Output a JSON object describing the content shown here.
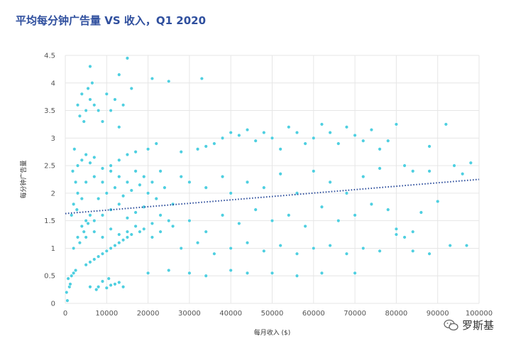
{
  "chart_data": {
    "type": "scatter",
    "title": "平均每分钟广告量 VS 收入，Q1 2020",
    "xlabel": "每月收入 ($)",
    "ylabel": "每分钟广告量",
    "xlim": [
      0,
      100000
    ],
    "ylim": [
      0,
      4.5
    ],
    "xticks": [
      "0",
      "10000",
      "20000",
      "30000",
      "40000",
      "50000",
      "60000",
      "70000",
      "80000",
      "90000",
      "100000"
    ],
    "yticks": [
      "0",
      "0.5",
      "1",
      "1.5",
      "2",
      "2.5",
      "3",
      "3.5",
      "4",
      "4.5"
    ],
    "grid": true,
    "point_color": "#4ecfe0",
    "trendline": {
      "x": [
        0,
        100000
      ],
      "y": [
        1.63,
        2.25
      ],
      "color": "#2b4c9b"
    },
    "series": [
      {
        "values": [
          [
            8000,
            0.3
          ],
          [
            10000,
            0.28
          ],
          [
            12000,
            0.35
          ],
          [
            9000,
            0.4
          ],
          [
            11000,
            0.33
          ],
          [
            6000,
            0.3
          ],
          [
            14000,
            0.3
          ],
          [
            13000,
            0.38
          ],
          [
            7500,
            0.25
          ],
          [
            10500,
            0.45
          ],
          [
            5000,
            0.7
          ],
          [
            7000,
            0.8
          ],
          [
            9000,
            0.9
          ],
          [
            11000,
            1.0
          ],
          [
            13000,
            1.1
          ],
          [
            15000,
            1.2
          ],
          [
            6000,
            0.75
          ],
          [
            8000,
            0.85
          ],
          [
            10000,
            0.95
          ],
          [
            12000,
            1.05
          ],
          [
            14000,
            1.15
          ],
          [
            16000,
            1.25
          ],
          [
            18000,
            1.3
          ],
          [
            2000,
            1.0
          ],
          [
            3000,
            1.2
          ],
          [
            4000,
            1.4
          ],
          [
            5000,
            1.5
          ],
          [
            6000,
            1.6
          ],
          [
            3500,
            1.1
          ],
          [
            4500,
            1.3
          ],
          [
            5500,
            1.45
          ],
          [
            7000,
            1.5
          ],
          [
            9000,
            1.6
          ],
          [
            11000,
            1.7
          ],
          [
            13000,
            1.8
          ],
          [
            15000,
            1.55
          ],
          [
            17000,
            1.65
          ],
          [
            19000,
            1.75
          ],
          [
            21000,
            1.45
          ],
          [
            23000,
            1.6
          ],
          [
            25000,
            1.5
          ],
          [
            8000,
            1.9
          ],
          [
            10000,
            2.0
          ],
          [
            12000,
            2.1
          ],
          [
            14000,
            1.95
          ],
          [
            16000,
            2.05
          ],
          [
            18000,
            2.15
          ],
          [
            20000,
            2.0
          ],
          [
            22000,
            1.9
          ],
          [
            24000,
            2.1
          ],
          [
            26000,
            1.8
          ],
          [
            3000,
            2.5
          ],
          [
            4000,
            2.6
          ],
          [
            5000,
            2.7
          ],
          [
            6000,
            2.55
          ],
          [
            7000,
            2.65
          ],
          [
            9000,
            2.45
          ],
          [
            11000,
            2.5
          ],
          [
            13000,
            2.6
          ],
          [
            15000,
            2.7
          ],
          [
            17000,
            2.75
          ],
          [
            3000,
            3.6
          ],
          [
            4000,
            3.8
          ],
          [
            5000,
            3.5
          ],
          [
            6000,
            3.7
          ],
          [
            4500,
            3.3
          ],
          [
            5500,
            3.9
          ],
          [
            3500,
            3.4
          ],
          [
            6500,
            4.0
          ],
          [
            7000,
            3.6
          ],
          [
            8000,
            3.5
          ],
          [
            10000,
            3.8
          ],
          [
            12000,
            3.7
          ],
          [
            14000,
            3.6
          ],
          [
            16000,
            3.9
          ],
          [
            9000,
            3.3
          ],
          [
            11000,
            3.5
          ],
          [
            13000,
            3.2
          ],
          [
            15000,
            4.45
          ],
          [
            13000,
            4.15
          ],
          [
            6000,
            4.3
          ],
          [
            33000,
            4.08
          ],
          [
            25000,
            4.03
          ],
          [
            21000,
            4.08
          ],
          [
            20000,
            2.8
          ],
          [
            22000,
            2.9
          ],
          [
            28000,
            2.75
          ],
          [
            32000,
            2.8
          ],
          [
            34000,
            2.85
          ],
          [
            36000,
            2.9
          ],
          [
            38000,
            3.0
          ],
          [
            40000,
            3.1
          ],
          [
            42000,
            3.05
          ],
          [
            44000,
            3.15
          ],
          [
            46000,
            2.95
          ],
          [
            48000,
            3.1
          ],
          [
            50000,
            3.0
          ],
          [
            52000,
            2.8
          ],
          [
            54000,
            3.2
          ],
          [
            56000,
            3.1
          ],
          [
            58000,
            2.9
          ],
          [
            60000,
            3.0
          ],
          [
            62000,
            3.25
          ],
          [
            64000,
            3.1
          ],
          [
            66000,
            2.9
          ],
          [
            68000,
            3.2
          ],
          [
            70000,
            3.05
          ],
          [
            72000,
            2.95
          ],
          [
            74000,
            3.15
          ],
          [
            76000,
            2.8
          ],
          [
            78000,
            2.95
          ],
          [
            80000,
            3.25
          ],
          [
            88000,
            2.85
          ],
          [
            92000,
            3.25
          ],
          [
            28000,
            2.3
          ],
          [
            30000,
            2.2
          ],
          [
            34000,
            2.1
          ],
          [
            38000,
            2.3
          ],
          [
            40000,
            2.0
          ],
          [
            44000,
            2.2
          ],
          [
            48000,
            2.1
          ],
          [
            52000,
            2.35
          ],
          [
            56000,
            2.0
          ],
          [
            60000,
            2.4
          ],
          [
            64000,
            2.2
          ],
          [
            68000,
            2.0
          ],
          [
            72000,
            2.3
          ],
          [
            76000,
            2.45
          ],
          [
            82000,
            2.5
          ],
          [
            84000,
            2.4
          ],
          [
            88000,
            2.4
          ],
          [
            96000,
            2.35
          ],
          [
            98000,
            2.55
          ],
          [
            94000,
            2.5
          ],
          [
            26000,
            1.4
          ],
          [
            30000,
            1.5
          ],
          [
            34000,
            1.3
          ],
          [
            38000,
            1.6
          ],
          [
            42000,
            1.45
          ],
          [
            46000,
            1.7
          ],
          [
            50000,
            1.5
          ],
          [
            54000,
            1.6
          ],
          [
            58000,
            1.4
          ],
          [
            62000,
            1.75
          ],
          [
            66000,
            1.5
          ],
          [
            70000,
            1.6
          ],
          [
            74000,
            1.8
          ],
          [
            78000,
            1.7
          ],
          [
            80000,
            1.35
          ],
          [
            84000,
            1.3
          ],
          [
            86000,
            1.65
          ],
          [
            90000,
            1.85
          ],
          [
            28000,
            1.0
          ],
          [
            32000,
            1.1
          ],
          [
            36000,
            0.9
          ],
          [
            40000,
            1.0
          ],
          [
            44000,
            1.1
          ],
          [
            48000,
            0.95
          ],
          [
            52000,
            1.05
          ],
          [
            56000,
            0.9
          ],
          [
            60000,
            1.0
          ],
          [
            64000,
            1.05
          ],
          [
            68000,
            0.9
          ],
          [
            72000,
            1.0
          ],
          [
            76000,
            0.95
          ],
          [
            80000,
            1.25
          ],
          [
            82000,
            1.2
          ],
          [
            84000,
            0.95
          ],
          [
            88000,
            0.9
          ],
          [
            93000,
            1.05
          ],
          [
            97000,
            1.05
          ],
          [
            20000,
            0.55
          ],
          [
            25000,
            0.6
          ],
          [
            30000,
            0.55
          ],
          [
            34000,
            0.5
          ],
          [
            40000,
            0.6
          ],
          [
            44000,
            0.55
          ],
          [
            50000,
            0.55
          ],
          [
            56000,
            0.5
          ],
          [
            62000,
            0.55
          ],
          [
            70000,
            0.55
          ],
          [
            500,
            0.05
          ],
          [
            1000,
            0.3
          ],
          [
            700,
            0.45
          ],
          [
            1500,
            0.5
          ],
          [
            300,
            0.2
          ],
          [
            2000,
            0.55
          ],
          [
            2500,
            0.6
          ],
          [
            1200,
            0.35
          ],
          [
            2000,
            1.8
          ],
          [
            2500,
            2.2
          ],
          [
            1500,
            1.6
          ],
          [
            3000,
            2.0
          ],
          [
            1800,
            2.4
          ],
          [
            2200,
            2.8
          ],
          [
            2800,
            1.7
          ],
          [
            4000,
            1.9
          ],
          [
            5000,
            2.2
          ],
          [
            7000,
            2.3
          ],
          [
            9000,
            2.2
          ],
          [
            11000,
            2.4
          ],
          [
            13000,
            2.3
          ],
          [
            15000,
            2.2
          ],
          [
            17000,
            2.4
          ],
          [
            19000,
            2.3
          ],
          [
            21000,
            2.2
          ],
          [
            23000,
            2.4
          ],
          [
            5000,
            1.2
          ],
          [
            7000,
            1.3
          ],
          [
            9000,
            1.2
          ],
          [
            11000,
            1.35
          ],
          [
            13000,
            1.25
          ],
          [
            15000,
            1.3
          ],
          [
            17000,
            1.4
          ],
          [
            19000,
            1.35
          ],
          [
            21000,
            1.2
          ],
          [
            23000,
            1.3
          ]
        ]
      }
    ]
  },
  "watermark": {
    "text": "罗斯基",
    "icon": "wechat-icon"
  }
}
